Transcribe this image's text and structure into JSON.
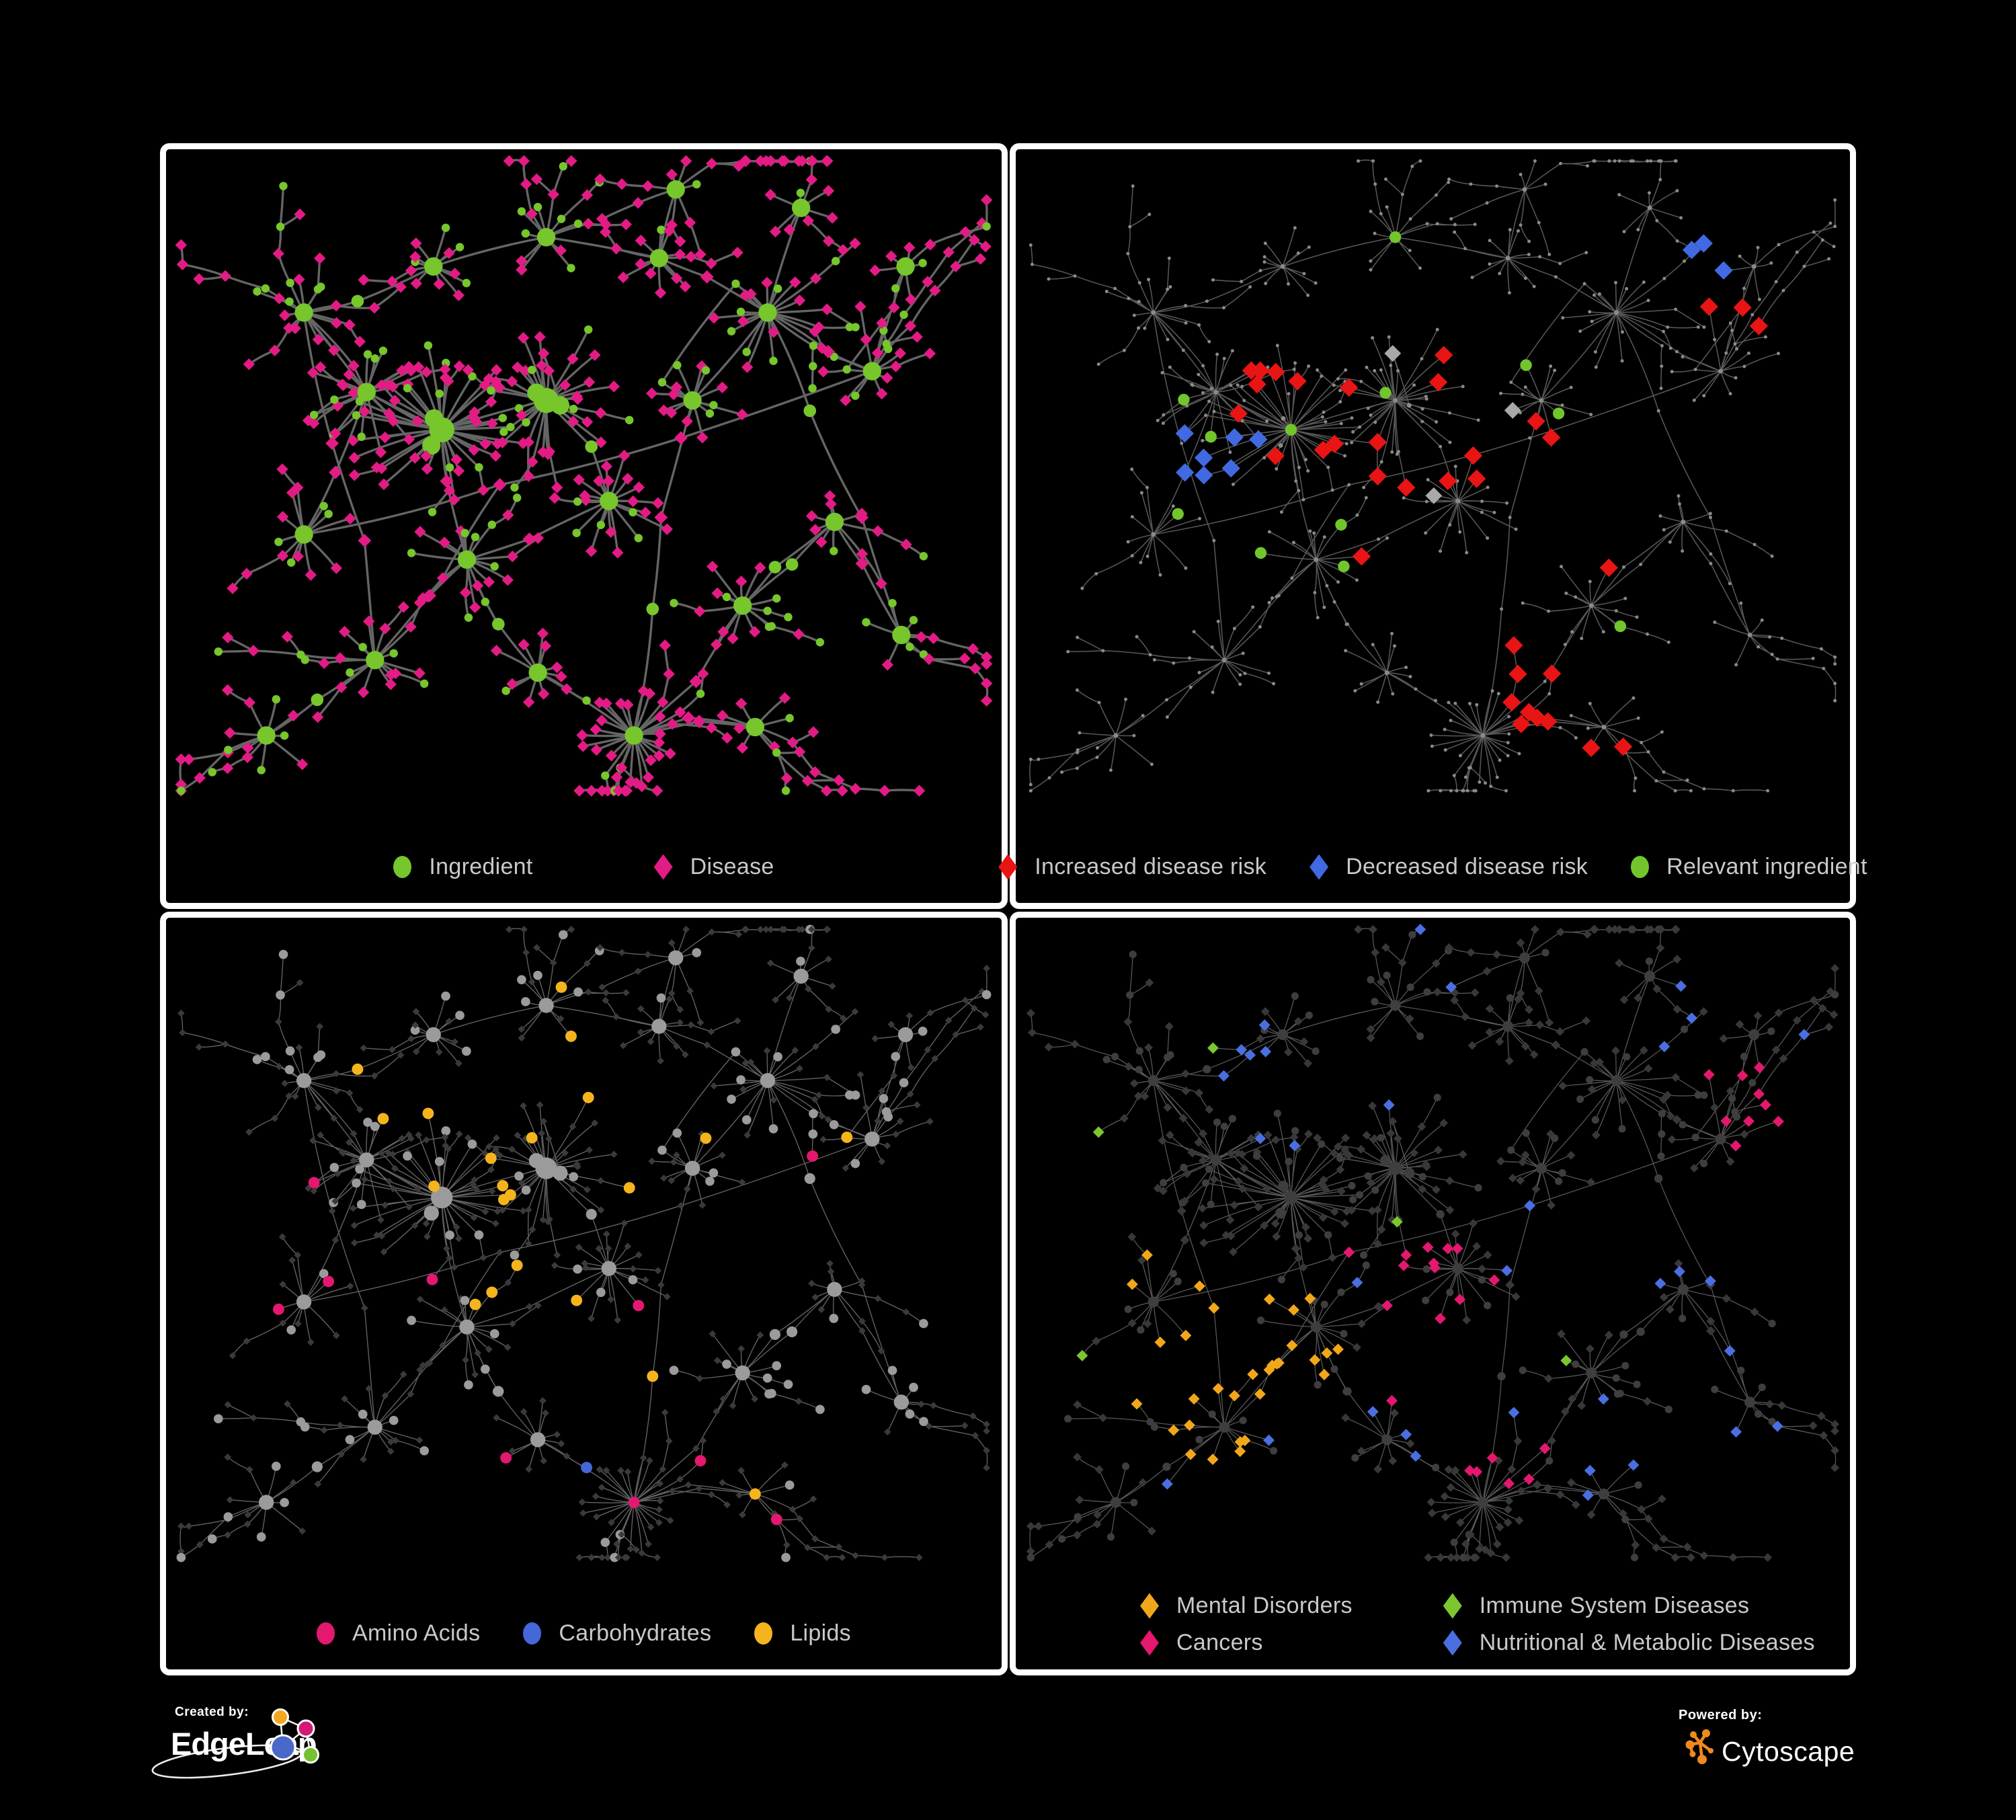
{
  "figure": {
    "background": "#000000",
    "panel_border_color": "#FFFFFF",
    "description": "Four views of an ingredient-disease association network",
    "legend_text_color": "#C9C9C9"
  },
  "panels": [
    {
      "id": "ingredient-disease",
      "legend": [
        {
          "label": "Ingredient",
          "shape": "circle",
          "color": "#76C62C"
        },
        {
          "label": "Disease",
          "shape": "diamond",
          "color": "#E31B85"
        }
      ],
      "style": {
        "edge_color": "#6B6B6B",
        "edge_width": 2.7,
        "edge_opacity": 0.95
      }
    },
    {
      "id": "disease-risk",
      "legend": [
        {
          "label": "Increased disease risk",
          "shape": "diamond",
          "color": "#E91414"
        },
        {
          "label": "Decreased disease risk",
          "shape": "diamond",
          "color": "#4169E1"
        },
        {
          "label": "Relevant ingredient",
          "shape": "circle",
          "color": "#72C62C"
        }
      ],
      "style": {
        "edge_color": "#676767",
        "edge_width": 1.25,
        "edge_opacity": 0.85,
        "base_node_color": "#8A8A8A",
        "muted_diamond_color": "#A9A9A9"
      }
    },
    {
      "id": "ingredient-classes",
      "legend": [
        {
          "label": "Amino Acids",
          "shape": "circle",
          "color": "#E3186E"
        },
        {
          "label": "Carbohydrates",
          "shape": "circle",
          "color": "#4467D9"
        },
        {
          "label": "Lipids",
          "shape": "circle",
          "color": "#F5B41D"
        }
      ],
      "style": {
        "edge_color": "#8E8E8E",
        "edge_width": 1.1,
        "edge_opacity": 0.7,
        "diamond_color": "#3A3A3A",
        "circle_color": "#9B9B9B"
      }
    },
    {
      "id": "disease-classes",
      "legend": [
        {
          "label": "Mental Disorders",
          "shape": "diamond",
          "color": "#F2A71B"
        },
        {
          "label": "Immune System Diseases",
          "shape": "diamond",
          "color": "#7CC62F"
        },
        {
          "label": "Cancers",
          "shape": "diamond",
          "color": "#E3186E"
        },
        {
          "label": "Nutritional & Metabolic Diseases",
          "shape": "diamond",
          "color": "#4B6FE0"
        }
      ],
      "style": {
        "edge_color": "#979797",
        "edge_width": 1.0,
        "edge_opacity": 0.6,
        "base_node_color": "#383838"
      }
    }
  ],
  "branding": {
    "created_by": "Created by:",
    "created_name": "EdgeLeap",
    "powered_by": "Powered by:",
    "powered_name": "Cytoscape",
    "edgeleap_glyph_colors": {
      "orange": "#F4A71E",
      "magenta": "#D31A74",
      "blue": "#4A68C8",
      "green": "#77C12F"
    },
    "cytoscape_color": "#EF8A1D"
  }
}
